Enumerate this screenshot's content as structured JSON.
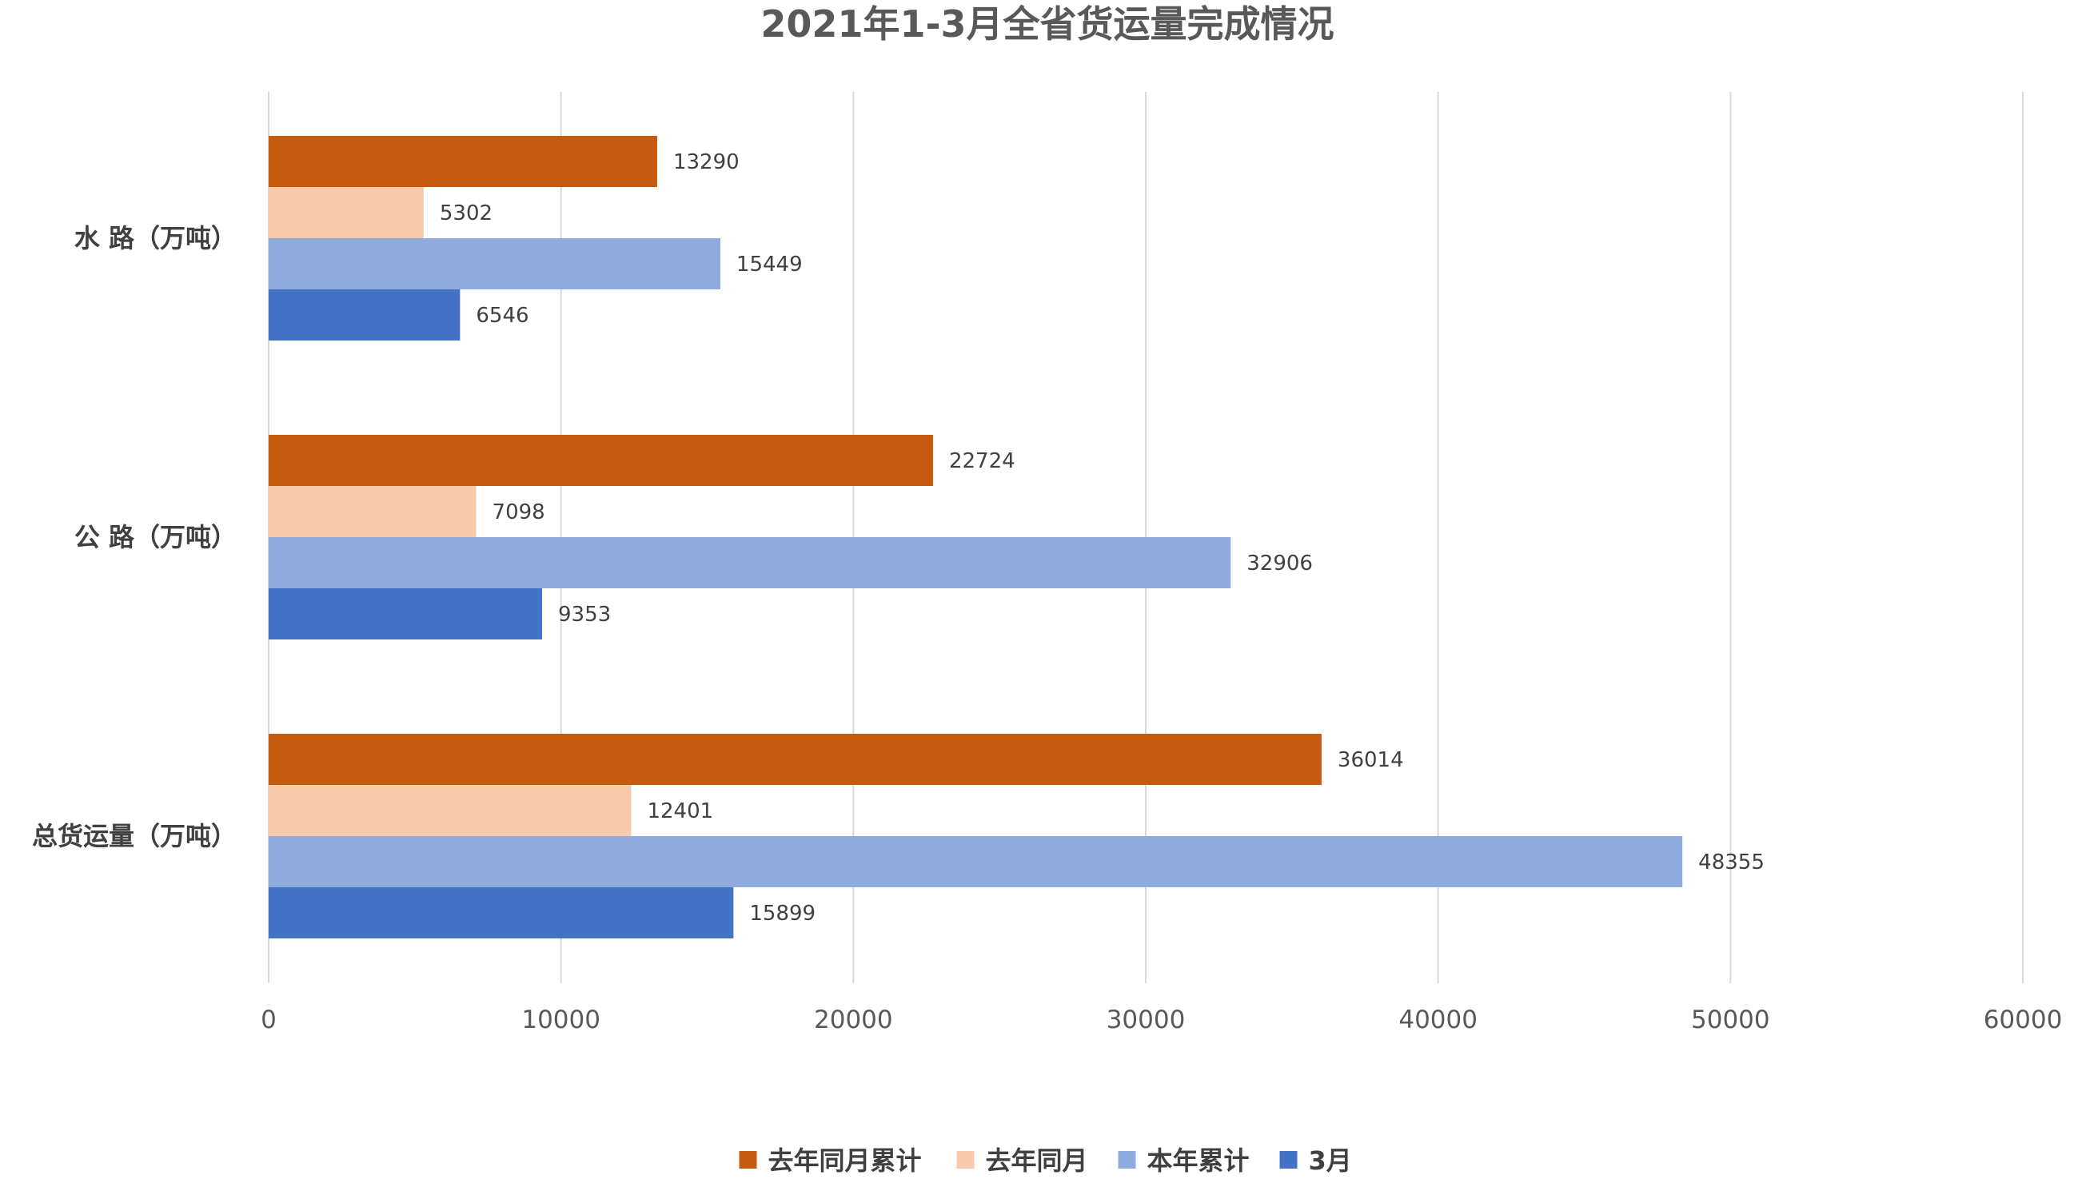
{
  "chart_data": {
    "type": "bar",
    "orientation": "horizontal",
    "title": "2021年1-3月全省货运量完成情况",
    "categories": [
      "水 路（万吨）",
      "公 路（万吨）",
      "总货运量（万吨）"
    ],
    "series": [
      {
        "name": "去年同月累计",
        "color": "#C55A11",
        "values": [
          13290,
          22724,
          36014
        ]
      },
      {
        "name": "去年同月",
        "color": "#F8CBAD",
        "values": [
          5302,
          7098,
          12401
        ]
      },
      {
        "name": "本年累计",
        "color": "#8FAADC",
        "values": [
          15449,
          32906,
          48355
        ]
      },
      {
        "name": "3月",
        "color": "#4472C4",
        "values": [
          6546,
          9353,
          15899
        ]
      }
    ],
    "xlim": [
      0,
      60000
    ],
    "xticks": [
      "0",
      "10000",
      "20000",
      "30000",
      "40000",
      "50000",
      "60000"
    ],
    "grid": "vertical",
    "legend": "bottom-center"
  }
}
